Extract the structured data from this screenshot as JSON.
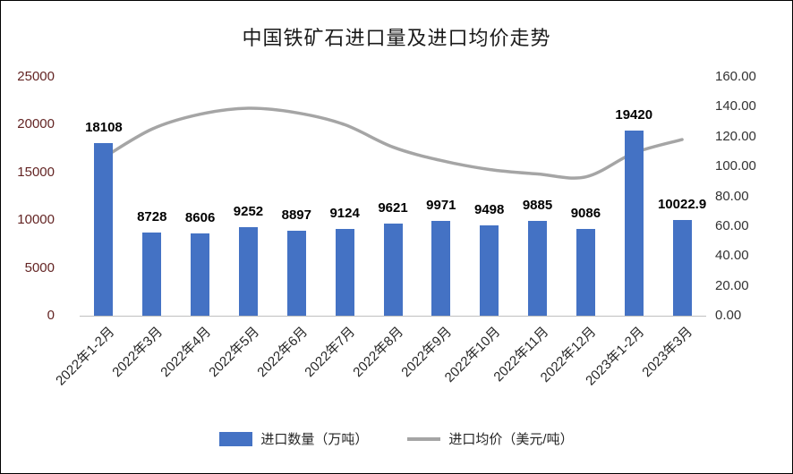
{
  "title": "中国铁矿石进口量及进口均价走势",
  "chart_data": {
    "type": "bar",
    "combo": "bar+line",
    "grid": false,
    "legend_position": "bottom",
    "categories": [
      "2022年1-2月",
      "2022年3月",
      "2022年4月",
      "2022年5月",
      "2022年6月",
      "2022年7月",
      "2022年8月",
      "2022年9月",
      "2022年10月",
      "2022年11月",
      "2022年12月",
      "2023年1-2月",
      "2023年3月"
    ],
    "series": [
      {
        "name": "进口数量（万吨）",
        "type": "bar",
        "axis": "left",
        "color": "#4472C4",
        "values": [
          18108,
          8728,
          8606,
          9252,
          8897,
          9124,
          9621,
          9971,
          9498,
          9885,
          9086,
          19420,
          10022.9
        ],
        "labels": [
          "18108",
          "8728",
          "8606",
          "9252",
          "8897",
          "9124",
          "9621",
          "9971",
          "9498",
          "9885",
          "9086",
          "19420",
          "10022.9"
        ]
      },
      {
        "name": "进口均价（美元/吨）",
        "type": "line",
        "axis": "right",
        "color": "#A5A5A5",
        "values": [
          106,
          125,
          135,
          139,
          136,
          128,
          113,
          104,
          98,
          95,
          93,
          109,
          118
        ]
      }
    ],
    "left_axis": {
      "min": 0,
      "max": 25000,
      "step": 5000,
      "ticks": [
        "0",
        "5000",
        "10000",
        "15000",
        "20000",
        "25000"
      ],
      "color": "#632423"
    },
    "right_axis": {
      "min": 0,
      "max": 160,
      "step": 20,
      "ticks": [
        "0.00",
        "20.00",
        "40.00",
        "60.00",
        "80.00",
        "100.00",
        "120.00",
        "140.00",
        "160.00"
      ],
      "color": "#333333"
    },
    "legend": [
      {
        "label": "进口数量（万吨）",
        "swatch": "bar",
        "color": "#4472C4"
      },
      {
        "label": "进口均价（美元/吨）",
        "swatch": "line",
        "color": "#A5A5A5"
      }
    ]
  }
}
